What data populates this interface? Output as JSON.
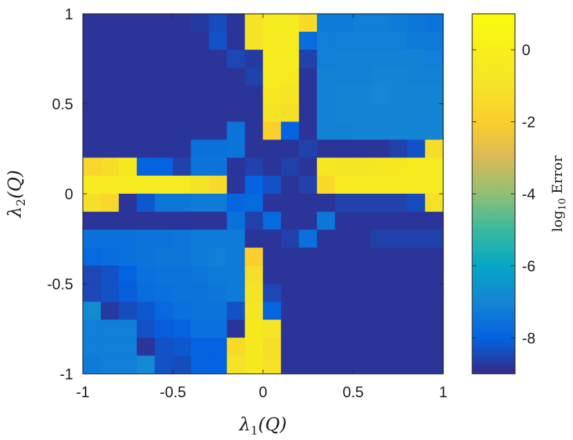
{
  "chart_data": {
    "type": "heatmap",
    "xlabel_main": "λ",
    "xlabel_sub": "1",
    "xlabel_arg": "(Q)",
    "ylabel_main": "λ",
    "ylabel_sub": "2",
    "ylabel_arg": "(Q)",
    "colorbar_label_main": "log",
    "colorbar_label_sub": "10",
    "colorbar_label_rest": " Error",
    "xlim": [
      -1,
      1
    ],
    "ylim": [
      -1,
      1
    ],
    "clim": [
      -9,
      1
    ],
    "x_ticks": [
      -1,
      -0.5,
      0,
      0.5,
      1
    ],
    "x_tick_labels": [
      "-1",
      "-0.5",
      "0",
      "0.5",
      "1"
    ],
    "y_ticks": [
      -1,
      -0.5,
      0,
      0.5,
      1
    ],
    "y_tick_labels": [
      "-1",
      "-0.5",
      "0",
      "0.5",
      "1"
    ],
    "colorbar_ticks": [
      0,
      -2,
      -4,
      -6,
      -8
    ],
    "colorbar_tick_labels": [
      "0",
      "-2",
      "-4",
      "-6",
      "-8"
    ],
    "colormap": "parula",
    "grid": false,
    "x": [
      -0.95,
      -0.85,
      -0.75,
      -0.65,
      -0.55,
      -0.45,
      -0.35,
      -0.25,
      -0.15,
      -0.05,
      0.05,
      0.15,
      0.25,
      0.35,
      0.45,
      0.55,
      0.65,
      0.75,
      0.85,
      0.95
    ],
    "y": [
      0.95,
      0.85,
      0.75,
      0.65,
      0.55,
      0.45,
      0.35,
      0.25,
      0.15,
      0.05,
      -0.05,
      -0.15,
      -0.25,
      -0.35,
      -0.45,
      -0.55,
      -0.65,
      -0.75,
      -0.85,
      -0.95
    ],
    "z": [
      [
        -8.8,
        -8.8,
        -8.8,
        -8.8,
        -8.8,
        -8.8,
        -8.7,
        -8.4,
        -8.8,
        -1.0,
        -0.3,
        -0.3,
        -1.4,
        -7.3,
        -7.3,
        -7.2,
        -7.2,
        -7.3,
        -7.4,
        -7.5
      ],
      [
        -8.8,
        -8.8,
        -8.8,
        -8.8,
        -8.8,
        -8.8,
        -8.8,
        -8.3,
        -8.8,
        -1.0,
        -0.3,
        -0.3,
        -7.7,
        -7.2,
        -7.2,
        -7.2,
        -7.2,
        -7.2,
        -7.3,
        -7.3
      ],
      [
        -8.8,
        -8.8,
        -8.8,
        -8.8,
        -8.8,
        -8.8,
        -8.8,
        -8.8,
        -8.5,
        -8.7,
        -0.3,
        -0.3,
        -8.6,
        -7.2,
        -7.1,
        -7.1,
        -7.1,
        -7.1,
        -7.1,
        -7.2
      ],
      [
        -8.8,
        -8.8,
        -8.8,
        -8.8,
        -8.8,
        -8.8,
        -8.8,
        -8.8,
        -8.8,
        -8.6,
        -0.3,
        -0.5,
        -8.8,
        -7.1,
        -7.1,
        -7.1,
        -7.0,
        -7.0,
        -7.1,
        -7.1
      ],
      [
        -8.8,
        -8.8,
        -8.8,
        -8.8,
        -8.8,
        -8.8,
        -8.8,
        -8.8,
        -8.8,
        -8.8,
        -0.6,
        -0.8,
        -8.8,
        -7.1,
        -7.0,
        -7.0,
        -6.9,
        -7.0,
        -7.0,
        -7.0
      ],
      [
        -8.8,
        -8.8,
        -8.8,
        -8.8,
        -8.8,
        -8.8,
        -8.8,
        -8.8,
        -8.8,
        -8.8,
        -1.0,
        -1.2,
        -8.8,
        -7.1,
        -7.0,
        -7.0,
        -7.0,
        -7.0,
        -7.0,
        -7.0
      ],
      [
        -8.8,
        -8.8,
        -8.8,
        -8.8,
        -8.8,
        -8.8,
        -8.8,
        -8.8,
        -7.5,
        -8.8,
        -1.9,
        -8.0,
        -8.8,
        -7.1,
        -7.1,
        -7.0,
        -7.0,
        -7.0,
        -7.0,
        -7.0
      ],
      [
        -8.8,
        -8.8,
        -8.8,
        -8.8,
        -8.8,
        -8.8,
        -7.6,
        -7.6,
        -7.5,
        -8.8,
        -8.8,
        -8.8,
        -8.6,
        -8.8,
        -8.8,
        -8.8,
        -8.8,
        -8.6,
        -8.3,
        -1.3
      ],
      [
        -1.6,
        -1.3,
        -0.5,
        -8.0,
        -8.0,
        -8.6,
        -7.5,
        -7.5,
        -8.8,
        -8.6,
        -8.8,
        -8.6,
        -8.8,
        -0.6,
        -0.8,
        -0.8,
        -0.7,
        -0.6,
        -0.3,
        -0.3
      ],
      [
        -0.3,
        -0.3,
        -0.3,
        -0.3,
        -0.3,
        -0.3,
        -1.0,
        -1.4,
        -8.8,
        -8.0,
        -8.3,
        -8.8,
        -8.6,
        -1.5,
        -0.3,
        -0.3,
        -0.3,
        -0.3,
        -0.3,
        -0.3
      ],
      [
        -1.2,
        -1.6,
        -8.8,
        -8.2,
        -7.4,
        -7.4,
        -7.3,
        -7.3,
        -7.9,
        -7.8,
        -8.8,
        -8.8,
        -8.8,
        -8.8,
        -8.6,
        -8.6,
        -8.6,
        -8.6,
        -8.4,
        -1.1
      ],
      [
        -8.8,
        -8.8,
        -8.8,
        -8.8,
        -8.8,
        -8.8,
        -8.8,
        -8.8,
        -7.6,
        -8.6,
        -7.8,
        -8.8,
        -8.8,
        -7.4,
        -8.8,
        -8.8,
        -8.8,
        -8.8,
        -8.8,
        -8.8
      ],
      [
        -7.6,
        -7.6,
        -7.6,
        -7.5,
        -7.5,
        -7.4,
        -7.3,
        -7.3,
        -7.3,
        -8.8,
        -8.8,
        -8.6,
        -7.6,
        -8.8,
        -8.8,
        -8.8,
        -8.6,
        -8.6,
        -8.6,
        -8.6
      ],
      [
        -7.8,
        -7.7,
        -7.6,
        -7.5,
        -7.4,
        -7.4,
        -7.3,
        -7.2,
        -7.3,
        -2.0,
        -8.8,
        -8.8,
        -8.8,
        -8.8,
        -8.8,
        -8.8,
        -8.8,
        -8.8,
        -8.8,
        -8.8
      ],
      [
        -8.5,
        -8.3,
        -8.0,
        -7.6,
        -7.5,
        -7.5,
        -7.4,
        -7.3,
        -7.3,
        -1.2,
        -8.8,
        -8.8,
        -8.8,
        -8.8,
        -8.8,
        -8.8,
        -8.8,
        -8.8,
        -8.8,
        -8.8
      ],
      [
        -8.5,
        -8.3,
        -8.1,
        -7.7,
        -7.6,
        -7.5,
        -7.5,
        -7.4,
        -7.3,
        -1.0,
        -8.5,
        -8.8,
        -8.8,
        -8.8,
        -8.8,
        -8.8,
        -8.8,
        -8.8,
        -8.8,
        -8.8
      ],
      [
        -6.8,
        -8.7,
        -8.4,
        -8.2,
        -7.8,
        -7.6,
        -7.5,
        -7.5,
        -8.3,
        -0.8,
        -7.9,
        -8.8,
        -8.8,
        -8.8,
        -8.8,
        -8.8,
        -8.8,
        -8.8,
        -8.8,
        -8.8
      ],
      [
        -7.2,
        -7.2,
        -7.2,
        -8.3,
        -8.1,
        -8.0,
        -7.6,
        -7.6,
        -8.8,
        -0.5,
        -0.8,
        -8.8,
        -8.8,
        -8.8,
        -8.8,
        -8.8,
        -8.8,
        -8.8,
        -8.8,
        -8.8
      ],
      [
        -7.2,
        -7.2,
        -7.2,
        -8.8,
        -8.3,
        -8.2,
        -8.0,
        -8.0,
        -1.4,
        -0.5,
        -1.2,
        -8.8,
        -8.8,
        -8.8,
        -8.8,
        -8.8,
        -8.8,
        -8.8,
        -8.8,
        -8.8
      ],
      [
        -7.3,
        -7.2,
        -7.2,
        -6.9,
        -8.3,
        -8.4,
        -8.0,
        -8.0,
        -1.0,
        -0.5,
        -1.1,
        -8.8,
        -8.8,
        -8.8,
        -8.8,
        -8.8,
        -8.8,
        -8.8,
        -8.8,
        -8.8
      ]
    ]
  }
}
